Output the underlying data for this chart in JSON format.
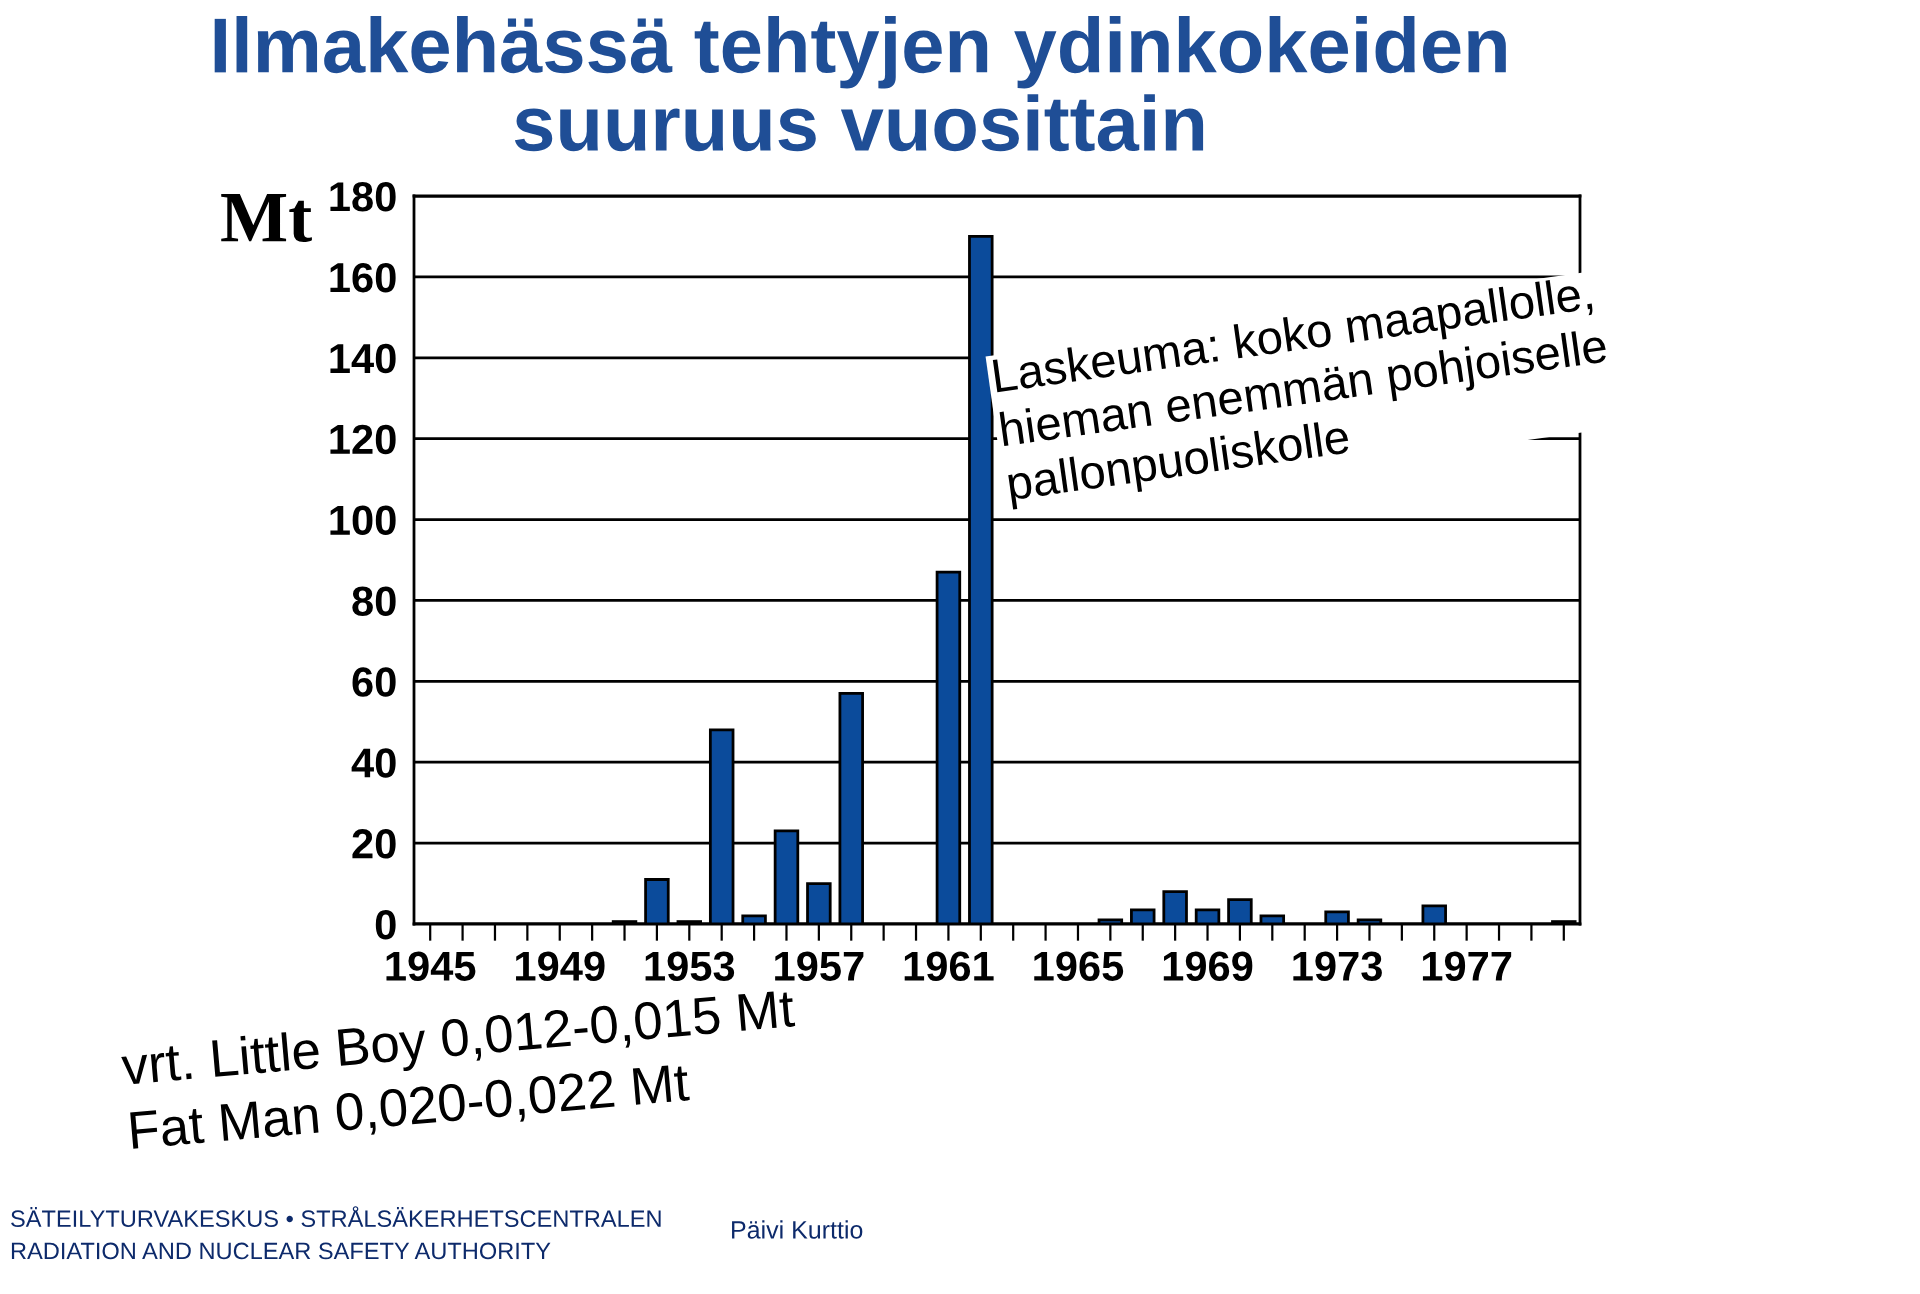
{
  "chart_data": {
    "type": "bar",
    "title": "Ilmakehässä tehtyjen ydinkokeiden\nsuuruus vuosittain",
    "ylabel": "Mt",
    "categories": [
      "1945",
      null,
      null,
      null,
      "1949",
      null,
      null,
      null,
      "1953",
      null,
      null,
      null,
      "1957",
      null,
      null,
      null,
      "1961",
      null,
      null,
      null,
      "1965",
      null,
      null,
      null,
      "1969",
      null,
      null,
      null,
      "1973",
      null,
      null,
      null,
      "1977",
      null,
      null,
      null
    ],
    "values": [
      null,
      null,
      null,
      null,
      null,
      null,
      0.6,
      11,
      0.6,
      48,
      2,
      23,
      10,
      57,
      null,
      null,
      87,
      170,
      null,
      null,
      null,
      1,
      3.5,
      8,
      3.5,
      6,
      2,
      null,
      3,
      1,
      null,
      4.5,
      null,
      null,
      null,
      0.6
    ],
    "color": "#0b4b9b",
    "ylim": [
      0,
      180
    ],
    "yticks": [
      0,
      20,
      40,
      60,
      80,
      100,
      120,
      140,
      160,
      180
    ],
    "grid": "y",
    "annotations": [
      "Laskeuma: koko maapallolle,\nhieman enemmän pohjoiselle\npallonpuoliskolle",
      "vrt. Little Boy 0,012-0,015 Mt\nFat Man 0,020-0,022 Mt",
      "SÄTEILYTURVAKESKUS • STRÅLSÄKERHETSCENTRALEN\nRADIATION AND NUCLEAR SAFETY AUTHORITY",
      "Päivi Kurttio"
    ]
  }
}
